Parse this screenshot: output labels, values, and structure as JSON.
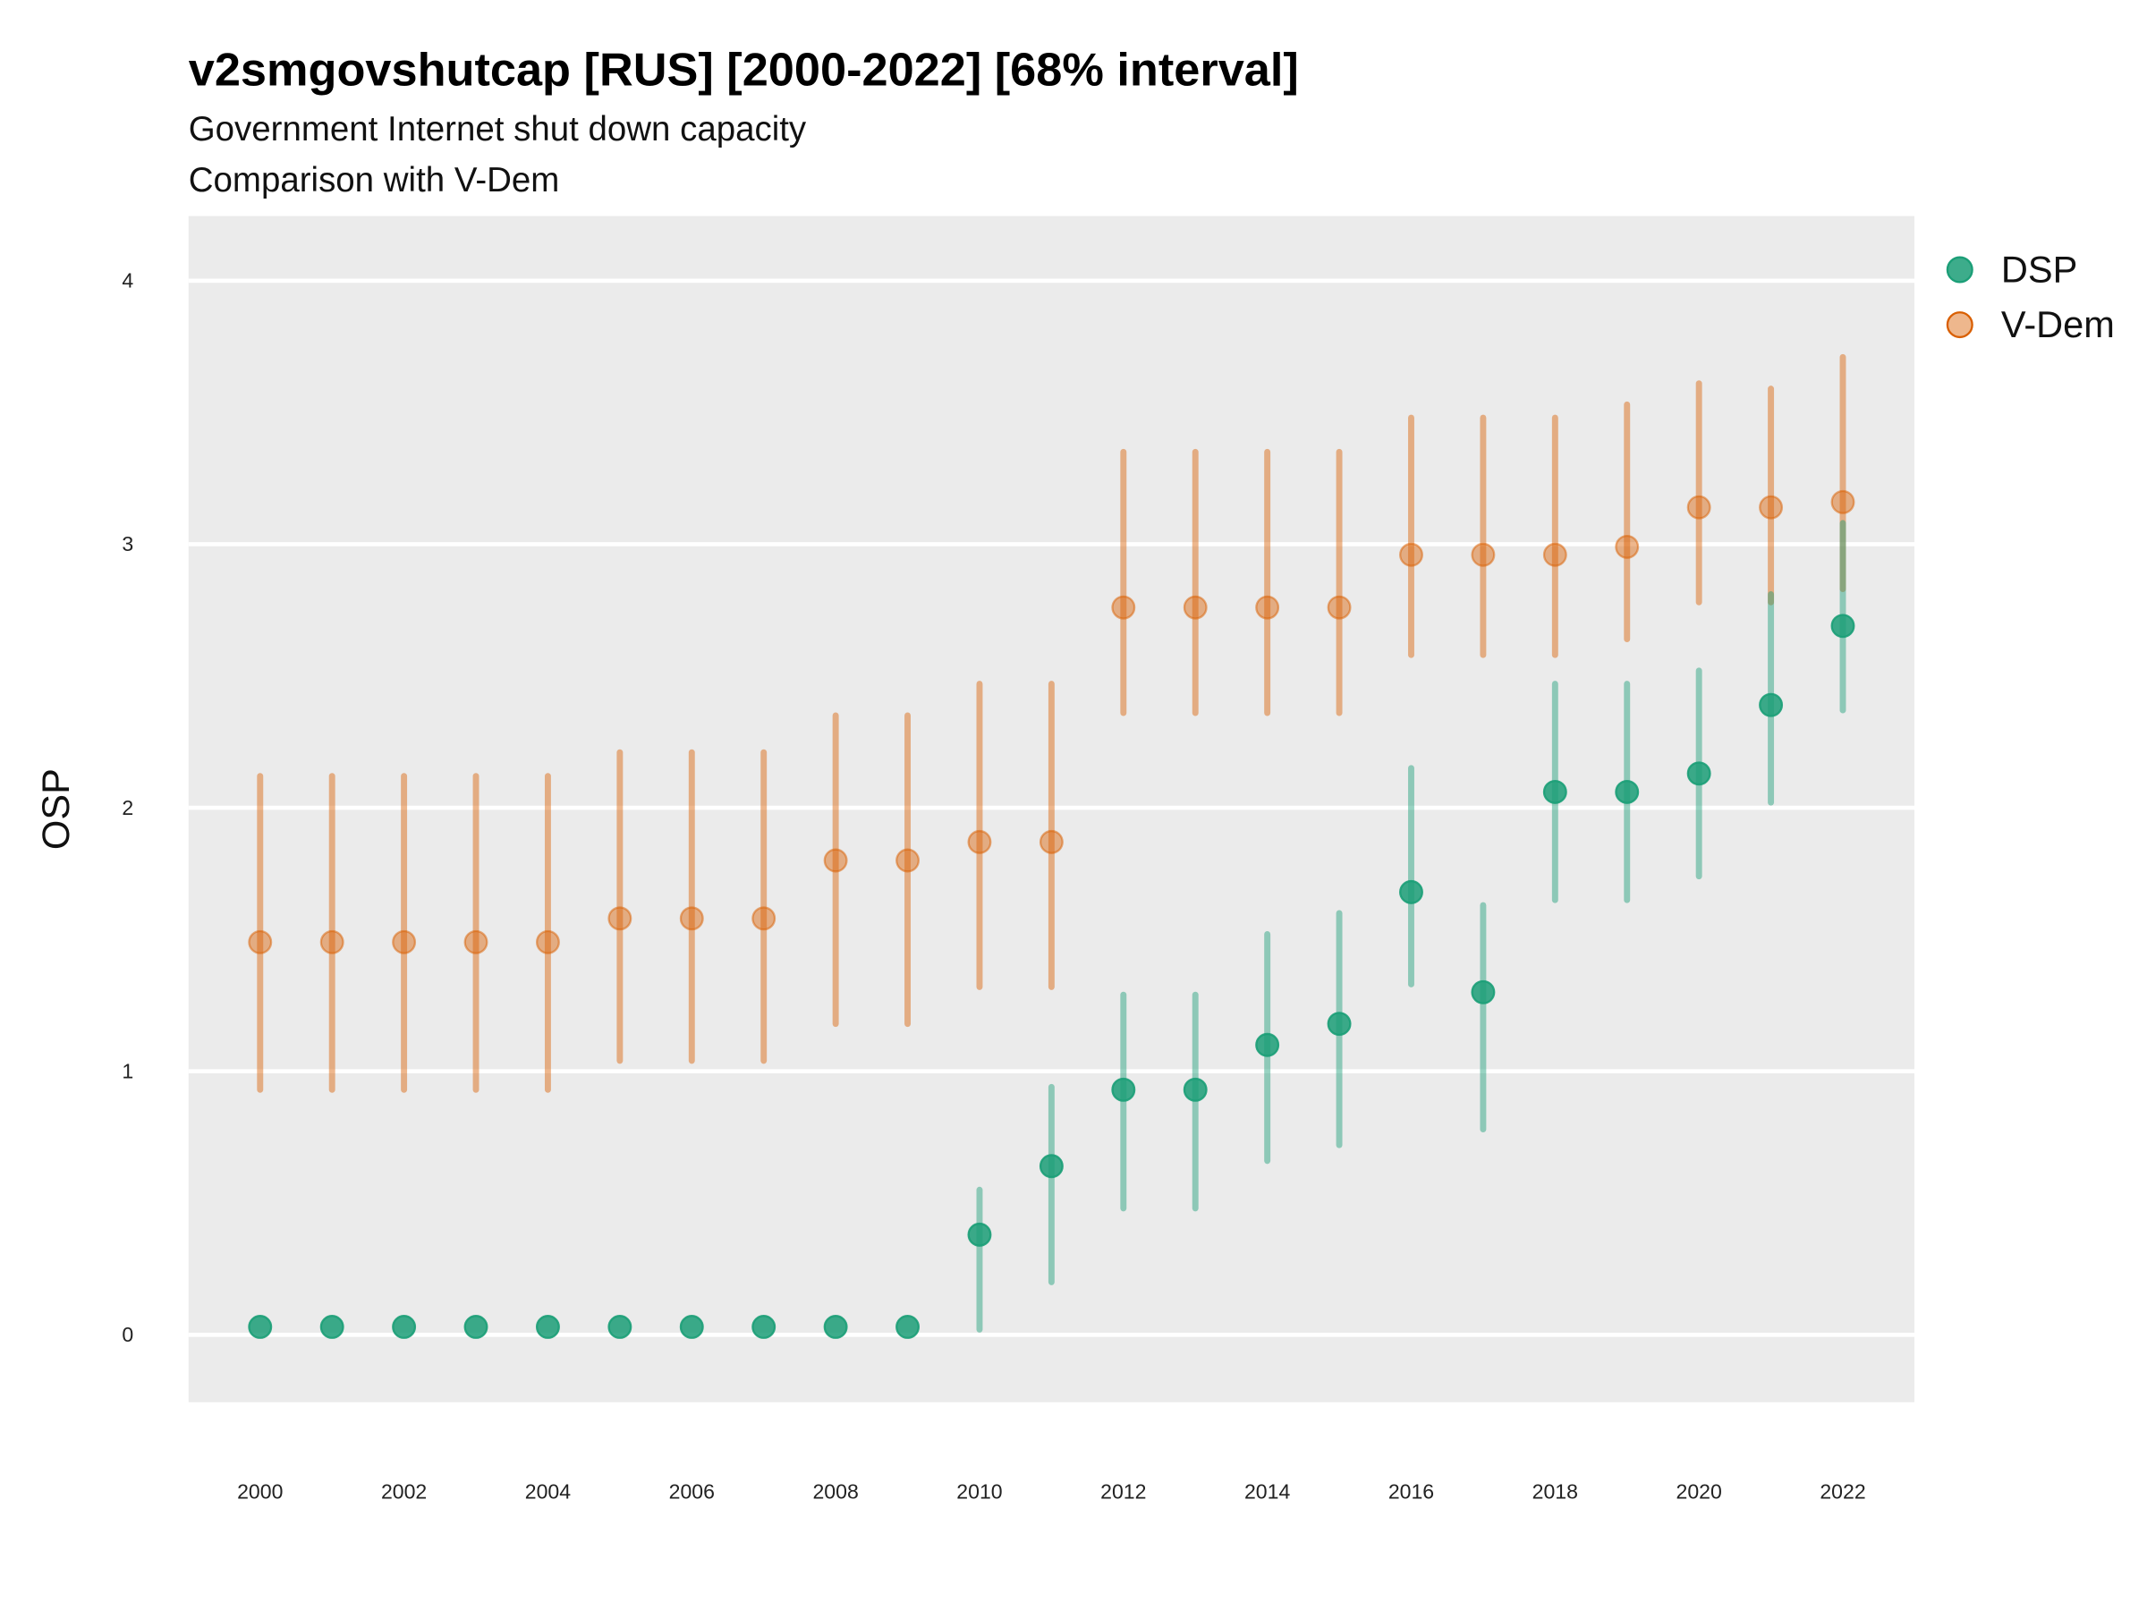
{
  "chart_data": {
    "type": "scatter",
    "title": "v2smgovshutcap [RUS] [2000-2022] [68% interval]",
    "subtitle": [
      "Government Internet shut down capacity",
      "Comparison with V-Dem"
    ],
    "xlabel": "",
    "ylabel": "OSP",
    "xlim": [
      1999,
      2023
    ],
    "ylim": [
      -0.25,
      4.25
    ],
    "x_ticks": [
      2000,
      2002,
      2004,
      2006,
      2008,
      2010,
      2012,
      2014,
      2016,
      2018,
      2020,
      2022
    ],
    "y_ticks": [
      0,
      1,
      2,
      3,
      4
    ],
    "grid": true,
    "legend_position": "right",
    "colors": {
      "DSP": "#1b9e77",
      "V-Dem": "#d95f02",
      "panel": "#ebebeb"
    },
    "x": [
      2000,
      2001,
      2002,
      2003,
      2004,
      2005,
      2006,
      2007,
      2008,
      2009,
      2010,
      2011,
      2012,
      2013,
      2014,
      2015,
      2016,
      2017,
      2018,
      2019,
      2020,
      2021,
      2022
    ],
    "series": [
      {
        "name": "DSP",
        "values": [
          0.03,
          0.03,
          0.03,
          0.03,
          0.03,
          0.03,
          0.03,
          0.03,
          0.03,
          0.03,
          0.38,
          0.64,
          0.93,
          0.93,
          1.1,
          1.18,
          1.68,
          1.3,
          2.06,
          2.06,
          2.13,
          2.39,
          2.69
        ],
        "lower": [
          0.03,
          0.03,
          0.03,
          0.03,
          0.03,
          0.03,
          0.03,
          0.03,
          0.03,
          0.03,
          0.02,
          0.2,
          0.48,
          0.48,
          0.66,
          0.72,
          1.33,
          0.78,
          1.65,
          1.65,
          1.74,
          2.02,
          2.37
        ],
        "upper": [
          0.03,
          0.03,
          0.03,
          0.03,
          0.03,
          0.03,
          0.03,
          0.03,
          0.03,
          0.03,
          0.55,
          0.94,
          1.29,
          1.29,
          1.52,
          1.6,
          2.15,
          1.63,
          2.47,
          2.47,
          2.52,
          2.81,
          3.08
        ]
      },
      {
        "name": "V-Dem",
        "values": [
          1.49,
          1.49,
          1.49,
          1.49,
          1.49,
          1.58,
          1.58,
          1.58,
          1.8,
          1.8,
          1.87,
          1.87,
          2.76,
          2.76,
          2.76,
          2.76,
          2.96,
          2.96,
          2.96,
          2.99,
          3.14,
          3.14,
          3.16
        ],
        "lower": [
          0.93,
          0.93,
          0.93,
          0.93,
          0.93,
          1.04,
          1.04,
          1.04,
          1.18,
          1.18,
          1.32,
          1.32,
          2.36,
          2.36,
          2.36,
          2.36,
          2.58,
          2.58,
          2.58,
          2.64,
          2.78,
          2.78,
          2.83
        ],
        "upper": [
          2.12,
          2.12,
          2.12,
          2.12,
          2.12,
          2.21,
          2.21,
          2.21,
          2.35,
          2.35,
          2.47,
          2.47,
          3.35,
          3.35,
          3.35,
          3.35,
          3.48,
          3.48,
          3.48,
          3.53,
          3.61,
          3.59,
          3.71
        ]
      }
    ]
  }
}
